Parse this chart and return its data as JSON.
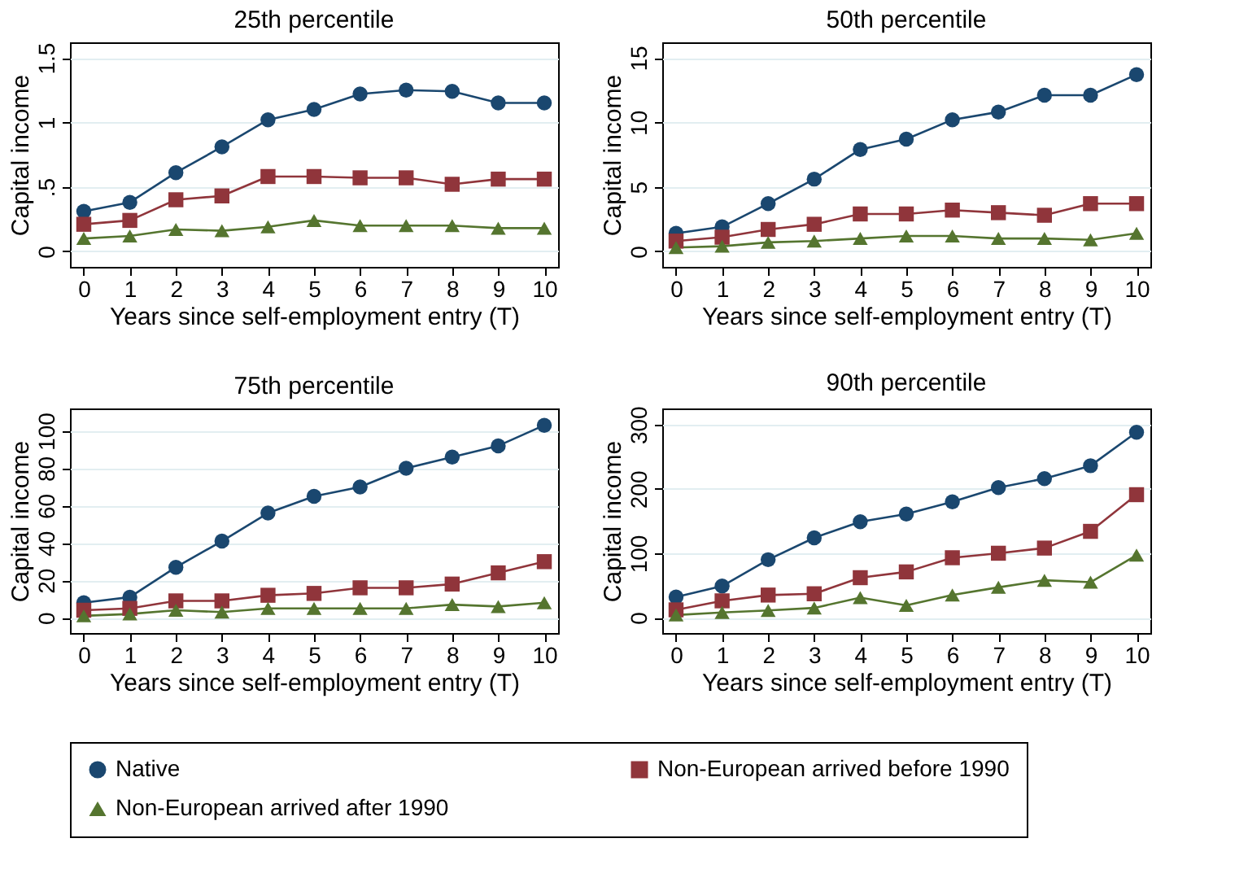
{
  "chart_data": [
    {
      "type": "line",
      "title": "25th percentile",
      "xlabel": "Years since self-employment entry (T)",
      "ylabel": "Capital income",
      "x": [
        0,
        1,
        2,
        3,
        4,
        5,
        6,
        7,
        8,
        9,
        10
      ],
      "xlim": [
        -0.3,
        10.3
      ],
      "xticks": [
        0,
        1,
        2,
        3,
        4,
        5,
        6,
        7,
        8,
        9,
        10
      ],
      "ylim": [
        -0.12,
        1.62
      ],
      "yticks": [
        0,
        {
          "value": 0.5,
          "label": ".5"
        },
        1,
        1.5
      ],
      "grid": "y",
      "legend": "bottom",
      "series": [
        {
          "name": "Native",
          "color": "#1a476f",
          "marker": "circle",
          "values": [
            0.31,
            0.38,
            0.61,
            0.81,
            1.02,
            1.1,
            1.22,
            1.25,
            1.24,
            1.15,
            1.15
          ]
        },
        {
          "name": "Non-European arrived before 1990",
          "color": "#90353b",
          "marker": "square",
          "values": [
            0.21,
            0.24,
            0.4,
            0.43,
            0.58,
            0.58,
            0.57,
            0.57,
            0.52,
            0.56,
            0.56
          ]
        },
        {
          "name": "Non-European arrived after 1990",
          "color": "#55752f",
          "marker": "triangle",
          "values": [
            0.1,
            0.12,
            0.17,
            0.16,
            0.19,
            0.24,
            0.2,
            0.2,
            0.2,
            0.18,
            0.18
          ]
        }
      ]
    },
    {
      "type": "line",
      "title": "50th percentile",
      "xlabel": "Years since self-employment entry (T)",
      "ylabel": "Capital income",
      "x": [
        0,
        1,
        2,
        3,
        4,
        5,
        6,
        7,
        8,
        9,
        10
      ],
      "xlim": [
        -0.3,
        10.3
      ],
      "xticks": [
        0,
        1,
        2,
        3,
        4,
        5,
        6,
        7,
        8,
        9,
        10
      ],
      "ylim": [
        -1.2,
        16.2
      ],
      "yticks": [
        0,
        5,
        10,
        15
      ],
      "grid": "y",
      "legend": "bottom",
      "series": [
        {
          "name": "Native",
          "color": "#1a476f",
          "marker": "circle",
          "values": [
            1.4,
            1.9,
            3.7,
            5.6,
            7.9,
            8.7,
            10.2,
            10.8,
            12.1,
            12.1,
            13.7
          ]
        },
        {
          "name": "Non-European arrived before 1990",
          "color": "#90353b",
          "marker": "square",
          "values": [
            0.8,
            1.1,
            1.7,
            2.1,
            2.9,
            2.9,
            3.2,
            3.0,
            2.8,
            3.7,
            3.7
          ]
        },
        {
          "name": "Non-European arrived after 1990",
          "color": "#55752f",
          "marker": "triangle",
          "values": [
            0.3,
            0.4,
            0.7,
            0.8,
            1.0,
            1.2,
            1.2,
            1.0,
            1.0,
            0.9,
            1.4
          ]
        }
      ]
    },
    {
      "type": "line",
      "title": "75th percentile",
      "xlabel": "Years since self-employment entry (T)",
      "ylabel": "Capital income",
      "x": [
        0,
        1,
        2,
        3,
        4,
        5,
        6,
        7,
        8,
        9,
        10
      ],
      "xlim": [
        -0.3,
        10.3
      ],
      "xticks": [
        0,
        1,
        2,
        3,
        4,
        5,
        6,
        7,
        8,
        9,
        10
      ],
      "ylim": [
        -8.2,
        112
      ],
      "yticks": [
        0,
        20,
        40,
        60,
        80,
        100
      ],
      "grid": "y",
      "legend": "bottom",
      "series": [
        {
          "name": "Native",
          "color": "#1a476f",
          "marker": "circle",
          "values": [
            8,
            11,
            27,
            41,
            56,
            65,
            70,
            80,
            86,
            92,
            103
          ]
        },
        {
          "name": "Non-European arrived before 1990",
          "color": "#90353b",
          "marker": "square",
          "values": [
            4,
            5,
            9,
            9,
            12,
            13,
            16,
            16,
            18,
            24,
            30
          ]
        },
        {
          "name": "Non-European arrived after 1990",
          "color": "#55752f",
          "marker": "triangle",
          "values": [
            1,
            2,
            4,
            3,
            5,
            5,
            5,
            5,
            7,
            6,
            8
          ]
        }
      ]
    },
    {
      "type": "line",
      "title": "90th percentile",
      "xlabel": "Years since self-employment entry (T)",
      "ylabel": "Capital income",
      "x": [
        0,
        1,
        2,
        3,
        4,
        5,
        6,
        7,
        8,
        9,
        10
      ],
      "xlim": [
        -0.3,
        10.3
      ],
      "xticks": [
        0,
        1,
        2,
        3,
        4,
        5,
        6,
        7,
        8,
        9,
        10
      ],
      "ylim": [
        -24,
        325
      ],
      "yticks": [
        0,
        100,
        200,
        300
      ],
      "grid": "y",
      "legend": "bottom",
      "series": [
        {
          "name": "Native",
          "color": "#1a476f",
          "marker": "circle",
          "values": [
            32,
            49,
            90,
            124,
            149,
            161,
            180,
            202,
            216,
            236,
            288
          ]
        },
        {
          "name": "Non-European arrived before 1990",
          "color": "#90353b",
          "marker": "square",
          "values": [
            12,
            26,
            35,
            37,
            62,
            71,
            93,
            100,
            108,
            134,
            191
          ]
        },
        {
          "name": "Non-European arrived after 1990",
          "color": "#55752f",
          "marker": "triangle",
          "values": [
            4,
            8,
            11,
            15,
            31,
            19,
            35,
            47,
            58,
            55,
            97
          ]
        }
      ]
    }
  ]
}
